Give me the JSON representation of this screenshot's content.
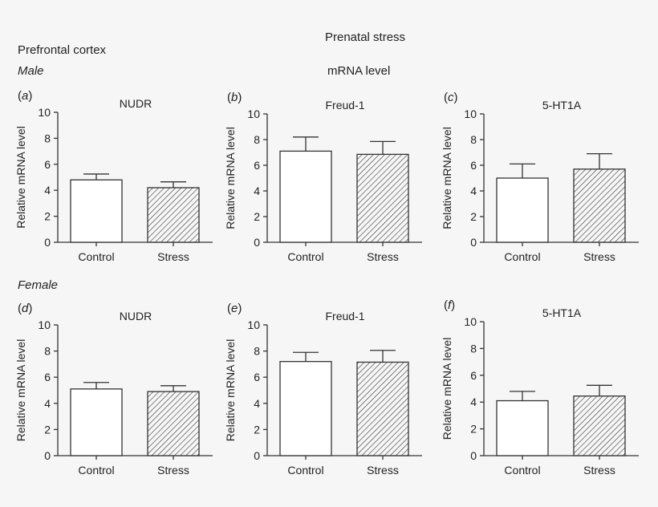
{
  "header": {
    "title": "Prenatal stress",
    "subtitle": "mRNA level",
    "region": "Prefrontal cortex",
    "row_labels": [
      "Male",
      "Female"
    ]
  },
  "chart_data": [
    {
      "type": "bar",
      "panel": "a",
      "title": "NUDR",
      "group": "Male",
      "categories": [
        "Control",
        "Stress"
      ],
      "values": [
        4.8,
        4.2
      ],
      "errors": [
        0.45,
        0.45
      ],
      "ylabel": "Relative mRNA level",
      "ylim": [
        0,
        10
      ],
      "yticks": [
        0,
        2,
        4,
        6,
        8,
        10
      ],
      "fills": [
        "white",
        "hatched"
      ]
    },
    {
      "type": "bar",
      "panel": "b",
      "title": "Freud-1",
      "group": "Male",
      "categories": [
        "Control",
        "Stress"
      ],
      "values": [
        7.1,
        6.85
      ],
      "errors": [
        1.1,
        1.0
      ],
      "ylabel": "Relative mRNA level",
      "ylim": [
        0,
        10
      ],
      "yticks": [
        0,
        2,
        4,
        6,
        8,
        10
      ],
      "fills": [
        "white",
        "hatched"
      ]
    },
    {
      "type": "bar",
      "panel": "c",
      "title": "5-HT1A",
      "group": "Male",
      "categories": [
        "Control",
        "Stress"
      ],
      "values": [
        5.0,
        5.7
      ],
      "errors": [
        1.1,
        1.2
      ],
      "ylabel": "Relative mRNA level",
      "ylim": [
        0,
        10
      ],
      "yticks": [
        0,
        2,
        4,
        6,
        8,
        10
      ],
      "fills": [
        "white",
        "hatched"
      ]
    },
    {
      "type": "bar",
      "panel": "d",
      "title": "NUDR",
      "group": "Female",
      "categories": [
        "Control",
        "Stress"
      ],
      "values": [
        5.1,
        4.9
      ],
      "errors": [
        0.5,
        0.45
      ],
      "ylabel": "Relative mRNA level",
      "ylim": [
        0,
        10
      ],
      "yticks": [
        0,
        2,
        4,
        6,
        8,
        10
      ],
      "fills": [
        "white",
        "hatched"
      ]
    },
    {
      "type": "bar",
      "panel": "e",
      "title": "Freud-1",
      "group": "Female",
      "categories": [
        "Control",
        "Stress"
      ],
      "values": [
        7.2,
        7.15
      ],
      "errors": [
        0.7,
        0.9
      ],
      "ylabel": "Relative mRNA level",
      "ylim": [
        0,
        10
      ],
      "yticks": [
        0,
        2,
        4,
        6,
        8,
        10
      ],
      "fills": [
        "white",
        "hatched"
      ]
    },
    {
      "type": "bar",
      "panel": "f",
      "title": "5-HT1A",
      "group": "Female",
      "categories": [
        "Control",
        "Stress"
      ],
      "values": [
        4.1,
        4.45
      ],
      "errors": [
        0.7,
        0.8
      ],
      "ylabel": "Relative mRNA level",
      "ylim": [
        0,
        10
      ],
      "yticks": [
        0,
        2,
        4,
        6,
        8,
        10
      ],
      "fills": [
        "white",
        "hatched"
      ]
    }
  ]
}
